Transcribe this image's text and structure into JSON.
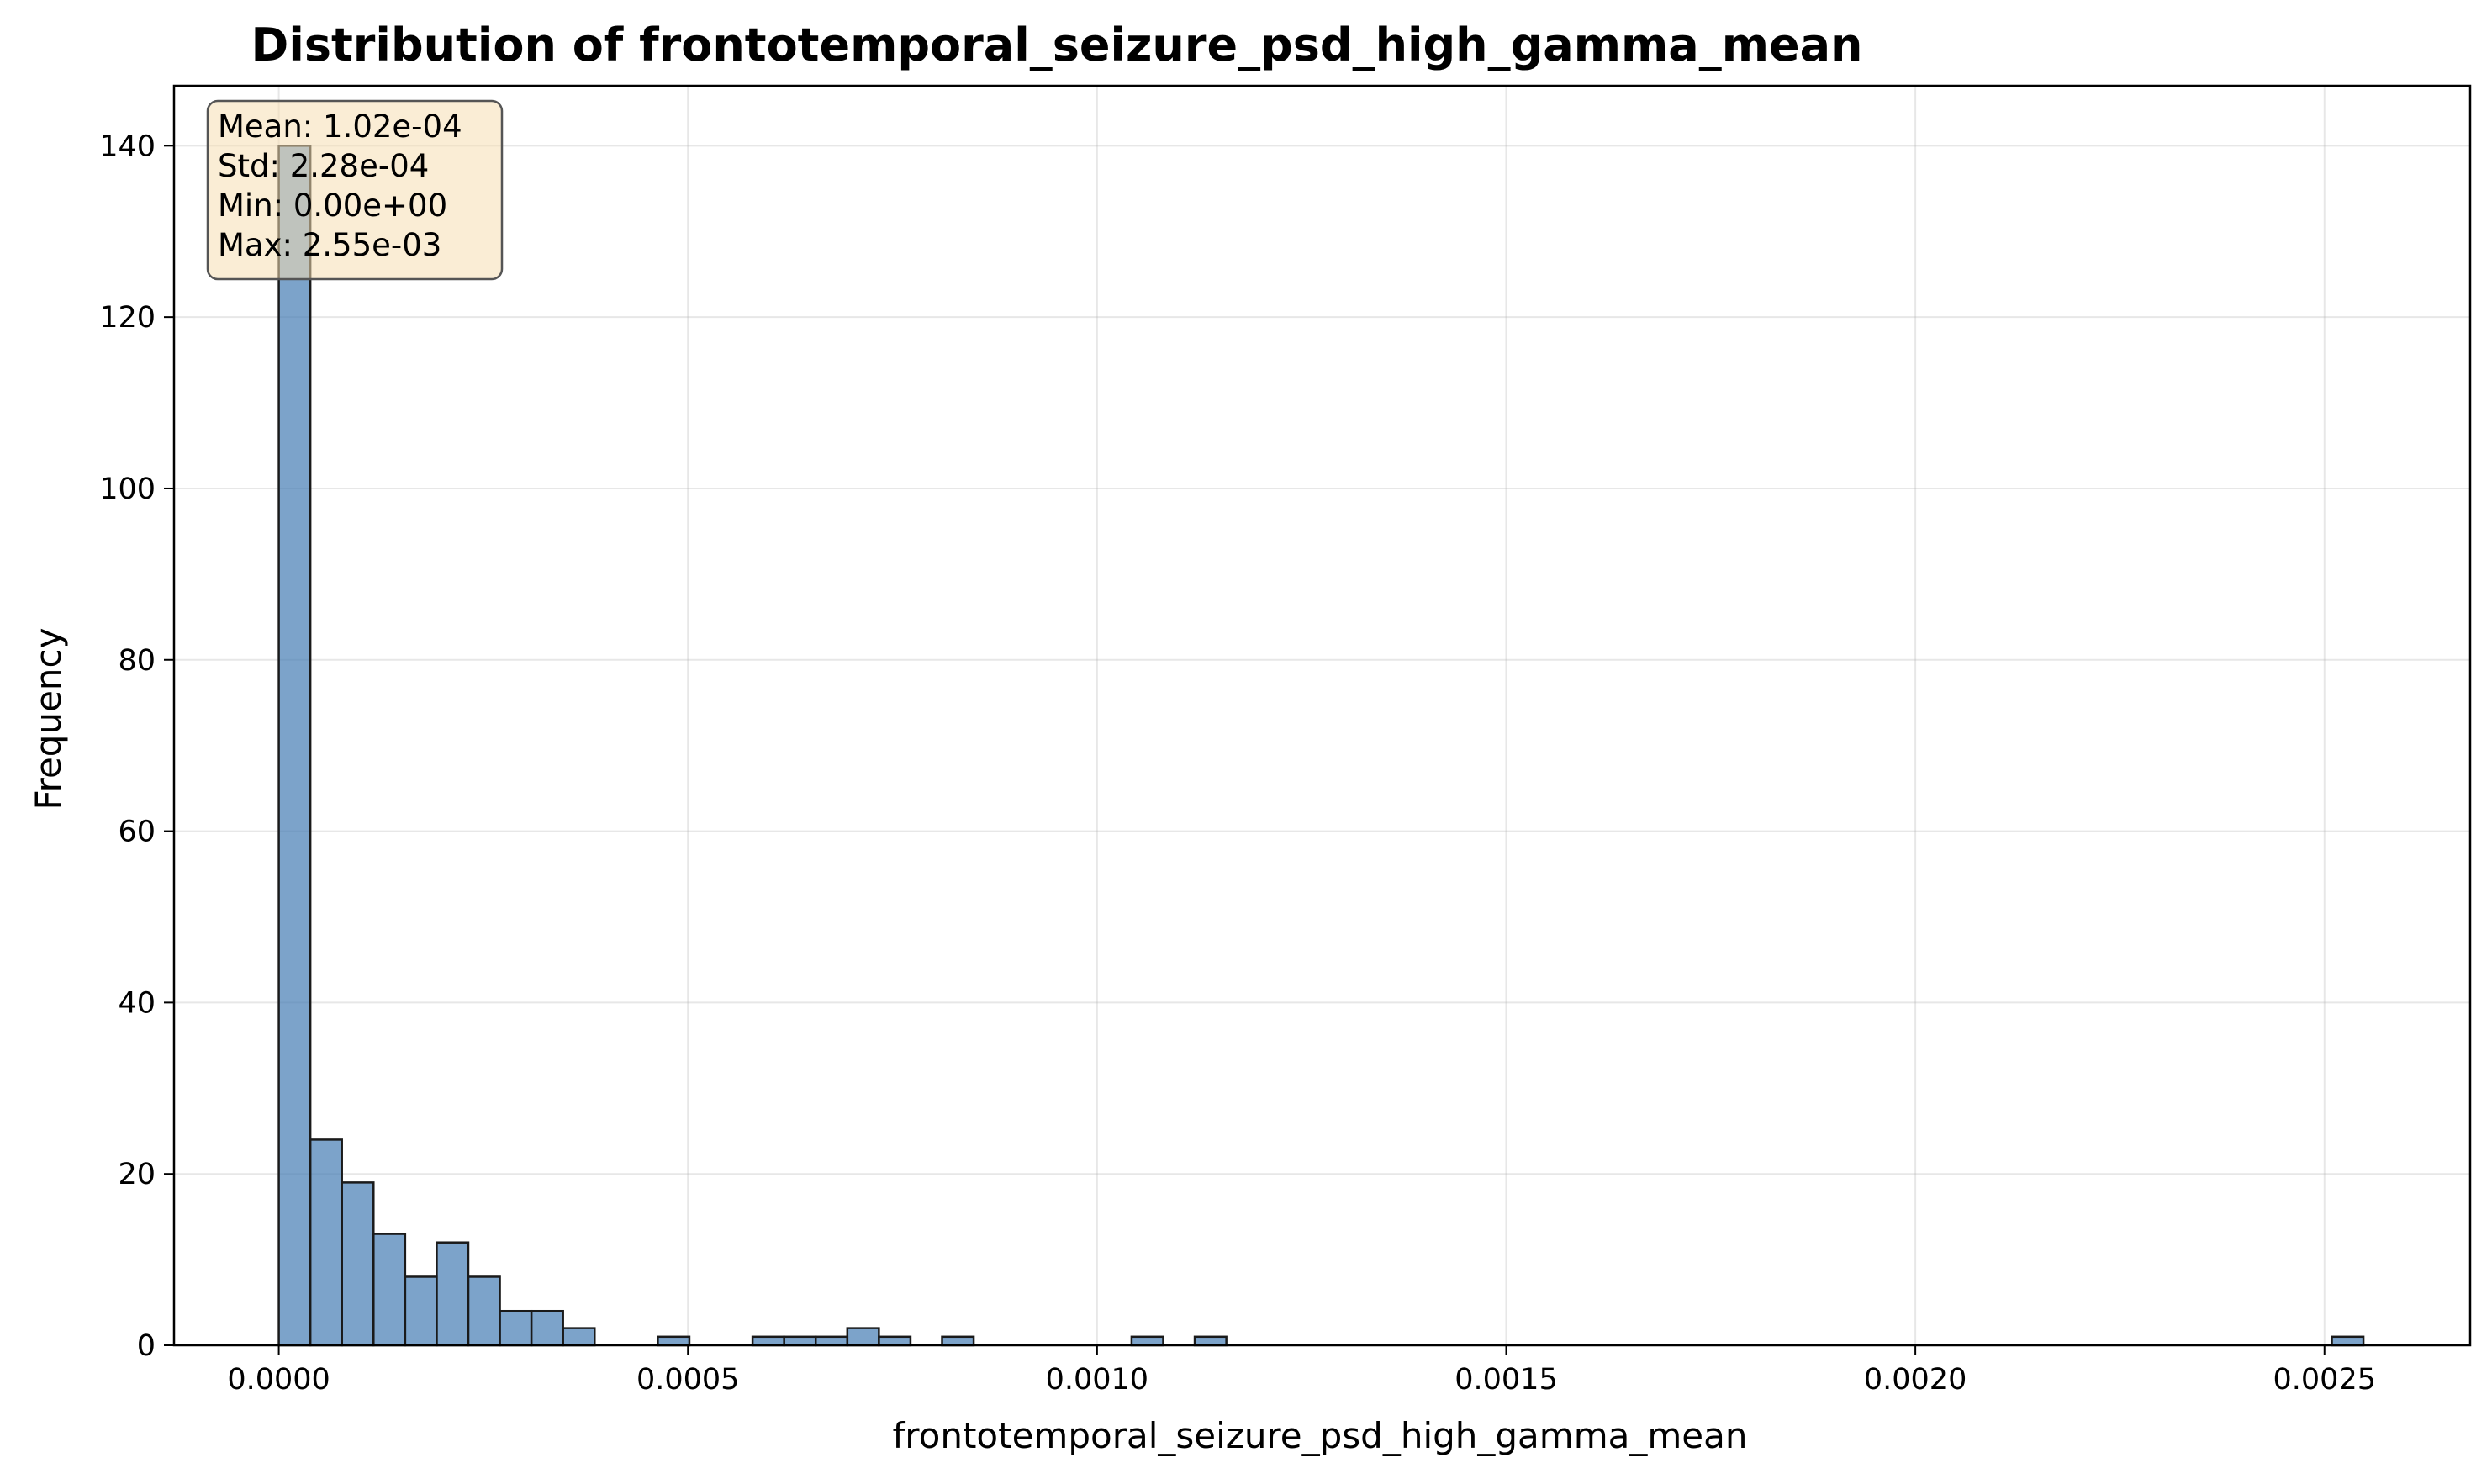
{
  "chart_data": {
    "type": "bar",
    "title": "Distribution of frontotemporal_seizure_psd_high_gamma_mean",
    "xlabel": "frontotemporal_seizure_psd_high_gamma_mean",
    "ylabel": "Frequency",
    "xlim": [
      -0.000128,
      0.002678
    ],
    "ylim": [
      0,
      147
    ],
    "xticks": [
      0.0,
      0.0005,
      0.001,
      0.0015,
      0.002,
      0.0025
    ],
    "xtick_labels": [
      "0.0000",
      "0.0005",
      "0.0010",
      "0.0015",
      "0.0020",
      "0.0025"
    ],
    "yticks": [
      0,
      20,
      40,
      60,
      80,
      100,
      120,
      140
    ],
    "ytick_labels": [
      "0",
      "20",
      "40",
      "60",
      "80",
      "100",
      "120",
      "140"
    ],
    "grid": true,
    "bar_color": "#4a7fb5",
    "bar_edge_color": "#1a1a1a",
    "bin_edges_start": 0.0,
    "bin_width": 3.86e-05,
    "counts": [
      140,
      24,
      19,
      13,
      8,
      12,
      8,
      4,
      4,
      2,
      0,
      0,
      1,
      0,
      0,
      1,
      1,
      1,
      2,
      1,
      0,
      1,
      0,
      0,
      0,
      0,
      0,
      1,
      0,
      1,
      0,
      0,
      0,
      0,
      0,
      0,
      0,
      0,
      0,
      0,
      0,
      0,
      0,
      0,
      0,
      0,
      0,
      0,
      0,
      0,
      0,
      0,
      0,
      0,
      0,
      0,
      0,
      0,
      0,
      0,
      0,
      0,
      0,
      0,
      0,
      1
    ],
    "stats": [
      "Mean: 1.02e-04",
      "Std: 2.28e-04",
      "Min: 0.00e+00",
      "Max: 2.55e-03"
    ],
    "stats_box_color": "#f5deb3"
  }
}
